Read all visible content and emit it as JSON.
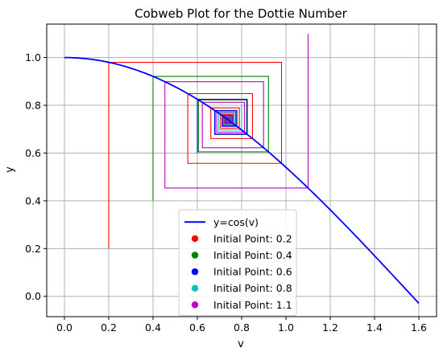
{
  "chart_data": {
    "type": "line",
    "title": "Cobweb Plot for the Dottie Number",
    "xlabel": "v",
    "ylabel": "y",
    "xlim": [
      -0.08,
      1.68
    ],
    "ylim": [
      -0.085,
      1.14
    ],
    "xticks": [
      0.0,
      0.2,
      0.4,
      0.6,
      0.8,
      1.0,
      1.2,
      1.4,
      1.6
    ],
    "xtick_labels": [
      "0.0",
      "0.2",
      "0.4",
      "0.6",
      "0.8",
      "1.0",
      "1.2",
      "1.4",
      "1.6"
    ],
    "yticks": [
      0.0,
      0.2,
      0.4,
      0.6,
      0.8,
      1.0
    ],
    "ytick_labels": [
      "0.0",
      "0.2",
      "0.4",
      "0.6",
      "0.8",
      "1.0"
    ],
    "grid": true,
    "legend_position": "bottom-center",
    "curve": {
      "name": "y=cos(v)",
      "function": "cos",
      "x_range": [
        0,
        1.6
      ],
      "color": "#0000ff"
    },
    "series": [
      {
        "name": "Initial Point: 0.2",
        "start": 0.2,
        "color": "#ff0000",
        "iterations": 40
      },
      {
        "name": "Initial Point: 0.4",
        "start": 0.4,
        "color": "#008000",
        "iterations": 40
      },
      {
        "name": "Initial Point: 0.6",
        "start": 0.6,
        "color": "#0000ff",
        "iterations": 40
      },
      {
        "name": "Initial Point: 0.8",
        "start": 0.8,
        "color": "#00bfbf",
        "iterations": 40
      },
      {
        "name": "Initial Point: 1.1",
        "start": 1.1,
        "color": "#bf00bf",
        "iterations": 40
      }
    ]
  }
}
